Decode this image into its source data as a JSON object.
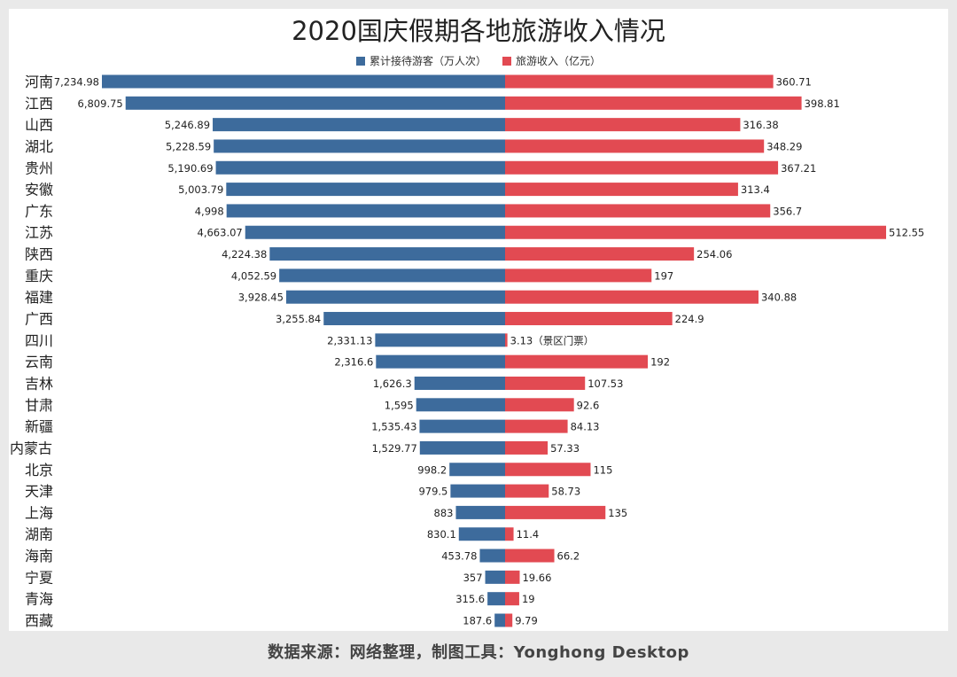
{
  "chart_data": {
    "type": "bar",
    "title": "2020国庆假期各地旅游收入情况",
    "categories": [
      "河南",
      "江西",
      "山西",
      "湖北",
      "贵州",
      "安徽",
      "广东",
      "江苏",
      "陕西",
      "重庆",
      "福建",
      "广西",
      "四川",
      "云南",
      "吉林",
      "甘肃",
      "新疆",
      "内蒙古",
      "北京",
      "天津",
      "上海",
      "湖南",
      "海南",
      "宁夏",
      "青海",
      "西藏"
    ],
    "series": [
      {
        "name": "累计接待游客（万人次）",
        "color": "#3d6b9c",
        "values": [
          7234.98,
          6809.75,
          5246.89,
          5228.59,
          5190.69,
          5003.79,
          4998,
          4663.07,
          4224.38,
          4052.59,
          3928.45,
          3255.84,
          2331.13,
          2316.6,
          1626.3,
          1595,
          1535.43,
          1529.77,
          998.2,
          979.5,
          883,
          830.1,
          453.78,
          357,
          315.6,
          187.6
        ],
        "labels": [
          "7,234.98",
          "6,809.75",
          "5,246.89",
          "5,228.59",
          "5,190.69",
          "5,003.79",
          "4,998",
          "4,663.07",
          "4,224.38",
          "4,052.59",
          "3,928.45",
          "3,255.84",
          "2,331.13",
          "2,316.6",
          "1,626.3",
          "1,595",
          "1,535.43",
          "1,529.77",
          "998.2",
          "979.5",
          "883",
          "830.1",
          "453.78",
          "357",
          "315.6",
          "187.6"
        ]
      },
      {
        "name": "旅游收入（亿元）",
        "color": "#e24a52",
        "values": [
          360.71,
          398.81,
          316.38,
          348.29,
          367.21,
          313.4,
          356.7,
          512.55,
          254.06,
          197,
          340.88,
          224.9,
          3.13,
          192,
          107.53,
          92.6,
          84.13,
          57.33,
          115,
          58.73,
          135,
          11.4,
          66.2,
          19.66,
          19,
          9.79
        ],
        "labels": [
          "360.71",
          "398.81",
          "316.38",
          "348.29",
          "367.21",
          "313.4",
          "356.7",
          "512.55",
          "254.06",
          "197",
          "340.88",
          "224.9",
          "3.13（景区门票）",
          "192",
          "107.53",
          "92.6",
          "84.13",
          "57.33",
          "115",
          "58.73",
          "135",
          "11.4",
          "66.2",
          "19.66",
          "19",
          "9.79"
        ]
      }
    ],
    "orientation": "horizontal-butterfly",
    "grid": false,
    "legend_position": "top-center"
  },
  "footer": "数据来源：网络整理，制图工具：Yonghong Desktop"
}
